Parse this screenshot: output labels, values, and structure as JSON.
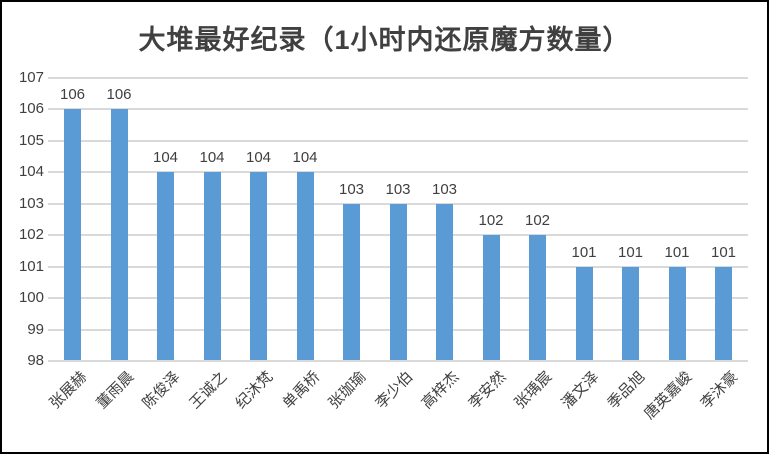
{
  "chart_data": {
    "type": "bar",
    "title": "大堆最好纪录（1小时内还原魔方数量）",
    "categories": [
      "张展赫",
      "董雨晨",
      "陈俊泽",
      "王诚之",
      "纪沐梵",
      "单禹桥",
      "张珈瑜",
      "李少伯",
      "高梓杰",
      "李安然",
      "张瑀宸",
      "潘文泽",
      "季品旭",
      "唐英嘉峻",
      "李沐豪"
    ],
    "values": [
      106,
      106,
      104,
      104,
      104,
      104,
      103,
      103,
      103,
      102,
      102,
      101,
      101,
      101,
      101
    ],
    "xlabel": "",
    "ylabel": "",
    "ylim": [
      98,
      107
    ],
    "yticks": [
      98,
      99,
      100,
      101,
      102,
      103,
      104,
      105,
      106,
      107
    ],
    "grid": "horizontal",
    "legend": "none",
    "data_labels": true,
    "bar_color": "#5b9bd5",
    "gridline_color": "#d9d9d9",
    "text_color": "#404040"
  }
}
